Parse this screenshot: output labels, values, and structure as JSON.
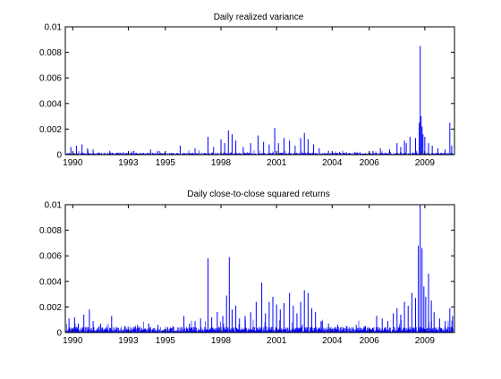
{
  "figure": {
    "background": "#ffffff",
    "axes_color": "#000000",
    "line_color": "#0000ff"
  },
  "chart_data": [
    {
      "type": "line",
      "title": "Daily realized variance",
      "xlabel": "",
      "ylabel": "",
      "xlim": [
        1989.6,
        2010.6
      ],
      "ylim": [
        0,
        0.01
      ],
      "grid": false,
      "legend": "none",
      "x_ticks": [
        1990,
        1993,
        1995,
        1998,
        2001,
        2004,
        2006,
        2009
      ],
      "x_tick_labels": [
        "1990",
        "1993",
        "1995",
        "1998",
        "2001",
        "2004",
        "2006",
        "2009"
      ],
      "y_ticks": [
        0,
        0.002,
        0.004,
        0.006,
        0.008,
        0.01
      ],
      "y_tick_labels": [
        "0",
        "0.002",
        "0.004",
        "0.006",
        "0.008",
        "0.01"
      ],
      "series": [
        {
          "color": "#0000ff",
          "baseline": 0.0001,
          "spikes": [
            {
              "x": 1989.9,
              "y": 0.0006
            },
            {
              "x": 1990.2,
              "y": 0.0007
            },
            {
              "x": 1990.5,
              "y": 0.0008
            },
            {
              "x": 1990.8,
              "y": 0.0005
            },
            {
              "x": 1991.1,
              "y": 0.0004
            },
            {
              "x": 1992.0,
              "y": 0.0003
            },
            {
              "x": 1993.3,
              "y": 0.0003
            },
            {
              "x": 1994.2,
              "y": 0.0004
            },
            {
              "x": 1995.8,
              "y": 0.0007
            },
            {
              "x": 1996.6,
              "y": 0.0005
            },
            {
              "x": 1997.3,
              "y": 0.0014
            },
            {
              "x": 1997.6,
              "y": 0.0006
            },
            {
              "x": 1998.0,
              "y": 0.0012
            },
            {
              "x": 1998.2,
              "y": 0.0009
            },
            {
              "x": 1998.4,
              "y": 0.0019
            },
            {
              "x": 1998.6,
              "y": 0.0016
            },
            {
              "x": 1998.8,
              "y": 0.0011
            },
            {
              "x": 1999.2,
              "y": 0.0006
            },
            {
              "x": 1999.6,
              "y": 0.0009
            },
            {
              "x": 2000.0,
              "y": 0.0015
            },
            {
              "x": 2000.3,
              "y": 0.001
            },
            {
              "x": 2000.6,
              "y": 0.0008
            },
            {
              "x": 2000.9,
              "y": 0.0021
            },
            {
              "x": 2001.1,
              "y": 0.0009
            },
            {
              "x": 2001.4,
              "y": 0.0013
            },
            {
              "x": 2001.7,
              "y": 0.0011
            },
            {
              "x": 2002.0,
              "y": 0.0007
            },
            {
              "x": 2002.3,
              "y": 0.0013
            },
            {
              "x": 2002.5,
              "y": 0.0017
            },
            {
              "x": 2002.7,
              "y": 0.0012
            },
            {
              "x": 2003.0,
              "y": 0.0008
            },
            {
              "x": 2003.3,
              "y": 0.0005
            },
            {
              "x": 2003.8,
              "y": 0.0003
            },
            {
              "x": 2004.4,
              "y": 0.0002
            },
            {
              "x": 2005.2,
              "y": 0.0002
            },
            {
              "x": 2006.2,
              "y": 0.0003
            },
            {
              "x": 2006.6,
              "y": 0.0005
            },
            {
              "x": 2007.1,
              "y": 0.0004
            },
            {
              "x": 2007.5,
              "y": 0.0009
            },
            {
              "x": 2007.7,
              "y": 0.0006
            },
            {
              "x": 2007.9,
              "y": 0.0011
            },
            {
              "x": 2008.0,
              "y": 0.0009
            },
            {
              "x": 2008.2,
              "y": 0.0014
            },
            {
              "x": 2008.5,
              "y": 0.0013
            },
            {
              "x": 2008.7,
              "y": 0.0025
            },
            {
              "x": 2008.75,
              "y": 0.0085
            },
            {
              "x": 2008.8,
              "y": 0.003
            },
            {
              "x": 2008.85,
              "y": 0.0022
            },
            {
              "x": 2008.9,
              "y": 0.0016
            },
            {
              "x": 2009.0,
              "y": 0.0014
            },
            {
              "x": 2009.2,
              "y": 0.0009
            },
            {
              "x": 2009.4,
              "y": 0.0007
            },
            {
              "x": 2009.7,
              "y": 0.0005
            },
            {
              "x": 2010.1,
              "y": 0.0004
            },
            {
              "x": 2010.35,
              "y": 0.0025
            },
            {
              "x": 2010.45,
              "y": 0.0007
            }
          ]
        }
      ]
    },
    {
      "type": "line",
      "title": "Daily close-to-close squared returns",
      "xlabel": "",
      "ylabel": "",
      "xlim": [
        1989.6,
        2010.6
      ],
      "ylim": [
        0,
        0.01
      ],
      "grid": false,
      "legend": "none",
      "x_ticks": [
        1990,
        1993,
        1995,
        1998,
        2001,
        2004,
        2006,
        2009
      ],
      "x_tick_labels": [
        "1990",
        "1993",
        "1995",
        "1998",
        "2001",
        "2004",
        "2006",
        "2009"
      ],
      "y_ticks": [
        0,
        0.002,
        0.004,
        0.006,
        0.008,
        0.01
      ],
      "y_tick_labels": [
        "0",
        "0.002",
        "0.004",
        "0.006",
        "0.008",
        "0.01"
      ],
      "series": [
        {
          "color": "#0000ff",
          "baseline": 0.0003,
          "spikes": [
            {
              "x": 1989.8,
              "y": 0.0011
            },
            {
              "x": 1990.1,
              "y": 0.0012
            },
            {
              "x": 1990.3,
              "y": 0.0007
            },
            {
              "x": 1990.6,
              "y": 0.0014
            },
            {
              "x": 1990.9,
              "y": 0.0018
            },
            {
              "x": 1991.1,
              "y": 0.0009
            },
            {
              "x": 1991.5,
              "y": 0.0007
            },
            {
              "x": 1992.1,
              "y": 0.0013
            },
            {
              "x": 1992.8,
              "y": 0.0005
            },
            {
              "x": 1993.5,
              "y": 0.0006
            },
            {
              "x": 1994.1,
              "y": 0.0007
            },
            {
              "x": 1994.6,
              "y": 0.0006
            },
            {
              "x": 1995.4,
              "y": 0.0005
            },
            {
              "x": 1996.0,
              "y": 0.0013
            },
            {
              "x": 1996.3,
              "y": 0.0007
            },
            {
              "x": 1996.6,
              "y": 0.0009
            },
            {
              "x": 1996.9,
              "y": 0.0011
            },
            {
              "x": 1997.3,
              "y": 0.0058
            },
            {
              "x": 1997.5,
              "y": 0.0012
            },
            {
              "x": 1997.8,
              "y": 0.0016
            },
            {
              "x": 1998.1,
              "y": 0.0013
            },
            {
              "x": 1998.3,
              "y": 0.0029
            },
            {
              "x": 1998.45,
              "y": 0.0059
            },
            {
              "x": 1998.6,
              "y": 0.0018
            },
            {
              "x": 1998.8,
              "y": 0.0021
            },
            {
              "x": 1999.0,
              "y": 0.0011
            },
            {
              "x": 1999.3,
              "y": 0.0013
            },
            {
              "x": 1999.6,
              "y": 0.0016
            },
            {
              "x": 1999.9,
              "y": 0.0024
            },
            {
              "x": 2000.2,
              "y": 0.0039
            },
            {
              "x": 2000.4,
              "y": 0.0015
            },
            {
              "x": 2000.6,
              "y": 0.0024
            },
            {
              "x": 2000.8,
              "y": 0.0028
            },
            {
              "x": 2001.0,
              "y": 0.0022
            },
            {
              "x": 2001.2,
              "y": 0.0018
            },
            {
              "x": 2001.4,
              "y": 0.0023
            },
            {
              "x": 2001.7,
              "y": 0.0031
            },
            {
              "x": 2001.9,
              "y": 0.0021
            },
            {
              "x": 2002.1,
              "y": 0.0015
            },
            {
              "x": 2002.3,
              "y": 0.0024
            },
            {
              "x": 2002.5,
              "y": 0.0033
            },
            {
              "x": 2002.7,
              "y": 0.0031
            },
            {
              "x": 2002.9,
              "y": 0.0019
            },
            {
              "x": 2003.1,
              "y": 0.0016
            },
            {
              "x": 2003.4,
              "y": 0.0009
            },
            {
              "x": 2003.8,
              "y": 0.0007
            },
            {
              "x": 2004.3,
              "y": 0.0006
            },
            {
              "x": 2004.8,
              "y": 0.0005
            },
            {
              "x": 2005.3,
              "y": 0.0006
            },
            {
              "x": 2005.8,
              "y": 0.0005
            },
            {
              "x": 2006.4,
              "y": 0.0013
            },
            {
              "x": 2006.7,
              "y": 0.0011
            },
            {
              "x": 2007.0,
              "y": 0.0009
            },
            {
              "x": 2007.3,
              "y": 0.0015
            },
            {
              "x": 2007.5,
              "y": 0.0019
            },
            {
              "x": 2007.7,
              "y": 0.0014
            },
            {
              "x": 2007.9,
              "y": 0.0024
            },
            {
              "x": 2008.1,
              "y": 0.0021
            },
            {
              "x": 2008.3,
              "y": 0.0031
            },
            {
              "x": 2008.5,
              "y": 0.0027
            },
            {
              "x": 2008.65,
              "y": 0.0068
            },
            {
              "x": 2008.75,
              "y": 0.01
            },
            {
              "x": 2008.85,
              "y": 0.0066
            },
            {
              "x": 2008.95,
              "y": 0.0036
            },
            {
              "x": 2009.05,
              "y": 0.0028
            },
            {
              "x": 2009.2,
              "y": 0.0046
            },
            {
              "x": 2009.35,
              "y": 0.0025
            },
            {
              "x": 2009.5,
              "y": 0.0016
            },
            {
              "x": 2009.8,
              "y": 0.0011
            },
            {
              "x": 2010.1,
              "y": 0.0009
            },
            {
              "x": 2010.35,
              "y": 0.0019
            },
            {
              "x": 2010.5,
              "y": 0.0013
            }
          ]
        }
      ]
    }
  ]
}
